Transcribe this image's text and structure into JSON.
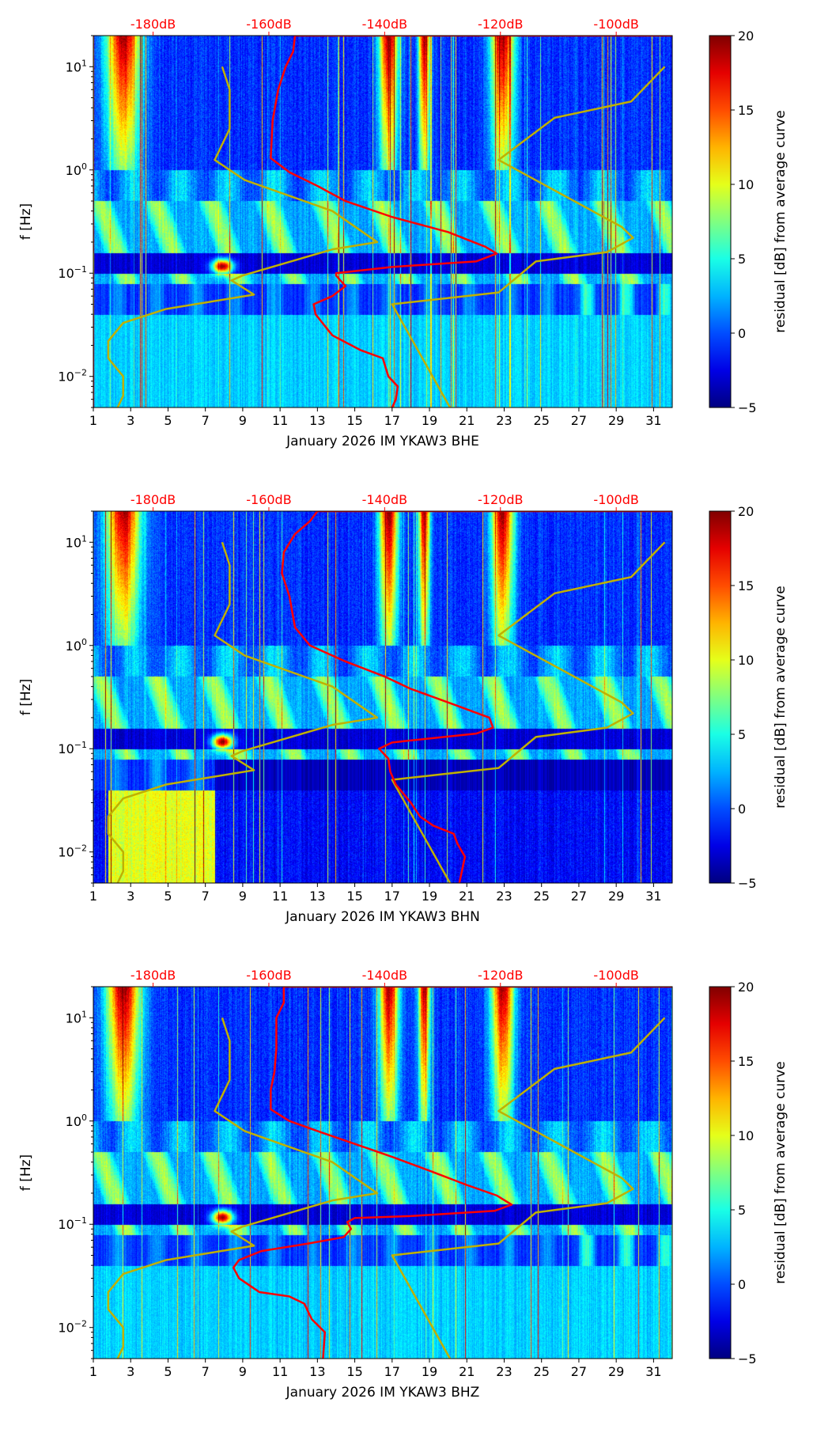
{
  "chart_data": [
    {
      "type": "heatmap",
      "xlabel": "January 2026 IM YKAW3  BHE",
      "ylabel": "f [Hz]",
      "colorbar_label": "residual [dB] from average curve",
      "red_curve_day_units": [
        [
          32,
          20
        ],
        [
          11.8,
          20
        ],
        [
          11.7,
          14
        ],
        [
          11.3,
          10
        ],
        [
          10.9,
          6
        ],
        [
          10.6,
          3
        ],
        [
          10.5,
          1.3
        ],
        [
          11.5,
          0.95
        ],
        [
          13,
          0.7
        ],
        [
          14.5,
          0.5
        ],
        [
          17,
          0.35
        ],
        [
          20,
          0.25
        ],
        [
          22,
          0.18
        ],
        [
          22.6,
          0.155
        ],
        [
          21.5,
          0.13
        ],
        [
          17,
          0.115
        ],
        [
          14,
          0.1
        ],
        [
          14,
          0.095
        ],
        [
          14.5,
          0.075
        ],
        [
          13.8,
          0.06
        ],
        [
          12.8,
          0.05
        ],
        [
          12.9,
          0.04
        ],
        [
          13.8,
          0.025
        ],
        [
          15.3,
          0.018
        ],
        [
          16.5,
          0.015
        ],
        [
          16.8,
          0.01
        ],
        [
          17.3,
          0.008
        ],
        [
          17.2,
          0.006
        ],
        [
          17,
          0.005
        ]
      ]
    },
    {
      "type": "heatmap",
      "xlabel": "January 2026 IM YKAW3  BHN",
      "ylabel": "f [Hz]",
      "colorbar_label": "residual [dB] from average curve",
      "red_curve_day_units": [
        [
          32,
          20
        ],
        [
          13,
          20
        ],
        [
          12.6,
          16
        ],
        [
          11.8,
          12
        ],
        [
          11.2,
          8
        ],
        [
          11.1,
          5
        ],
        [
          11.5,
          3
        ],
        [
          11.8,
          1.5
        ],
        [
          12.6,
          1
        ],
        [
          14.5,
          0.7
        ],
        [
          16.6,
          0.5
        ],
        [
          18,
          0.38
        ],
        [
          20.5,
          0.26
        ],
        [
          22.2,
          0.2
        ],
        [
          22.4,
          0.16
        ],
        [
          21.5,
          0.14
        ],
        [
          17,
          0.115
        ],
        [
          16.3,
          0.1
        ],
        [
          16.8,
          0.08
        ],
        [
          16.9,
          0.06
        ],
        [
          17.2,
          0.045
        ],
        [
          18,
          0.03
        ],
        [
          18.5,
          0.022
        ],
        [
          19.2,
          0.018
        ],
        [
          20.3,
          0.015
        ],
        [
          20.5,
          0.012
        ],
        [
          20.9,
          0.009
        ],
        [
          20.6,
          0.005
        ]
      ]
    },
    {
      "type": "heatmap",
      "xlabel": "January 2026 IM YKAW3  BHZ",
      "ylabel": "f [Hz]",
      "colorbar_label": "residual [dB] from average curve",
      "red_curve_day_units": [
        [
          32,
          20
        ],
        [
          11.2,
          20
        ],
        [
          11.2,
          14
        ],
        [
          10.8,
          10
        ],
        [
          10.8,
          5
        ],
        [
          10.7,
          3
        ],
        [
          10.5,
          2
        ],
        [
          10.5,
          1.3
        ],
        [
          11.5,
          1.0
        ],
        [
          13,
          0.8
        ],
        [
          15,
          0.6
        ],
        [
          17,
          0.45
        ],
        [
          19,
          0.33
        ],
        [
          21,
          0.24
        ],
        [
          22.6,
          0.19
        ],
        [
          23.4,
          0.155
        ],
        [
          22.5,
          0.135
        ],
        [
          18,
          0.12
        ],
        [
          15,
          0.115
        ],
        [
          14.6,
          0.105
        ],
        [
          14.8,
          0.09
        ],
        [
          14.4,
          0.075
        ],
        [
          12.5,
          0.065
        ],
        [
          10,
          0.055
        ],
        [
          8.8,
          0.045
        ],
        [
          8.5,
          0.038
        ],
        [
          8.8,
          0.03
        ],
        [
          9.9,
          0.022
        ],
        [
          11.5,
          0.02
        ],
        [
          12.3,
          0.017
        ],
        [
          12.7,
          0.012
        ],
        [
          13.4,
          0.009
        ],
        [
          13.3,
          0.005
        ]
      ]
    }
  ],
  "shared": {
    "xlim": [
      1,
      32
    ],
    "ylim": [
      0.005,
      20
    ],
    "yscale": "log",
    "x_ticks": [
      "1",
      "3",
      "5",
      "7",
      "9",
      "11",
      "13",
      "15",
      "17",
      "19",
      "21",
      "23",
      "25",
      "27",
      "29",
      "31"
    ],
    "y_ticks": [
      {
        "value": 0.01,
        "base": "10",
        "exp": "−2"
      },
      {
        "value": 0.1,
        "base": "10",
        "exp": "−1"
      },
      {
        "value": 1,
        "base": "10",
        "exp": "0"
      },
      {
        "value": 10,
        "base": "10",
        "exp": "1"
      }
    ],
    "top_db_ticks": [
      {
        "label": "-180dB",
        "day": 4.2
      },
      {
        "label": "-160dB",
        "day": 10.4
      },
      {
        "label": "-140dB",
        "day": 16.6
      },
      {
        "label": "-120dB",
        "day": 22.8
      },
      {
        "label": "-100dB",
        "day": 29.0
      }
    ],
    "colorbar_range": [
      -5,
      20
    ],
    "colorbar_ticks": [
      "20",
      "15",
      "10",
      "5",
      "0",
      "−5"
    ],
    "colormap": "jet",
    "low_noise_model_day_units": [
      [
        7.9,
        10
      ],
      [
        8.3,
        6
      ],
      [
        8.3,
        2.5
      ],
      [
        7.5,
        1.25
      ],
      [
        9.1,
        0.8
      ],
      [
        13.8,
        0.4
      ],
      [
        16.2,
        0.2
      ],
      [
        13.8,
        0.17
      ],
      [
        9.0,
        0.095
      ],
      [
        8.4,
        0.085
      ],
      [
        9.6,
        0.062
      ],
      [
        4.9,
        0.045
      ],
      [
        2.6,
        0.033
      ],
      [
        1.8,
        0.022
      ],
      [
        1.8,
        0.015
      ],
      [
        2.6,
        0.01
      ],
      [
        2.6,
        0.0065
      ],
      [
        2.3,
        0.005
      ]
    ],
    "high_noise_model_day_units": [
      [
        31.6,
        10
      ],
      [
        29.8,
        4.6
      ],
      [
        25.7,
        3.2
      ],
      [
        22.7,
        1.25
      ],
      [
        29.3,
        0.28
      ],
      [
        29.9,
        0.22
      ],
      [
        28.5,
        0.16
      ],
      [
        24.7,
        0.13
      ],
      [
        22.7,
        0.065
      ],
      [
        17.0,
        0.05
      ],
      [
        20.1,
        0.005
      ]
    ],
    "colors": {
      "psd_curve": "#ff0000",
      "noise_models": "#c0b000",
      "db_labels": "#ff0000"
    }
  }
}
